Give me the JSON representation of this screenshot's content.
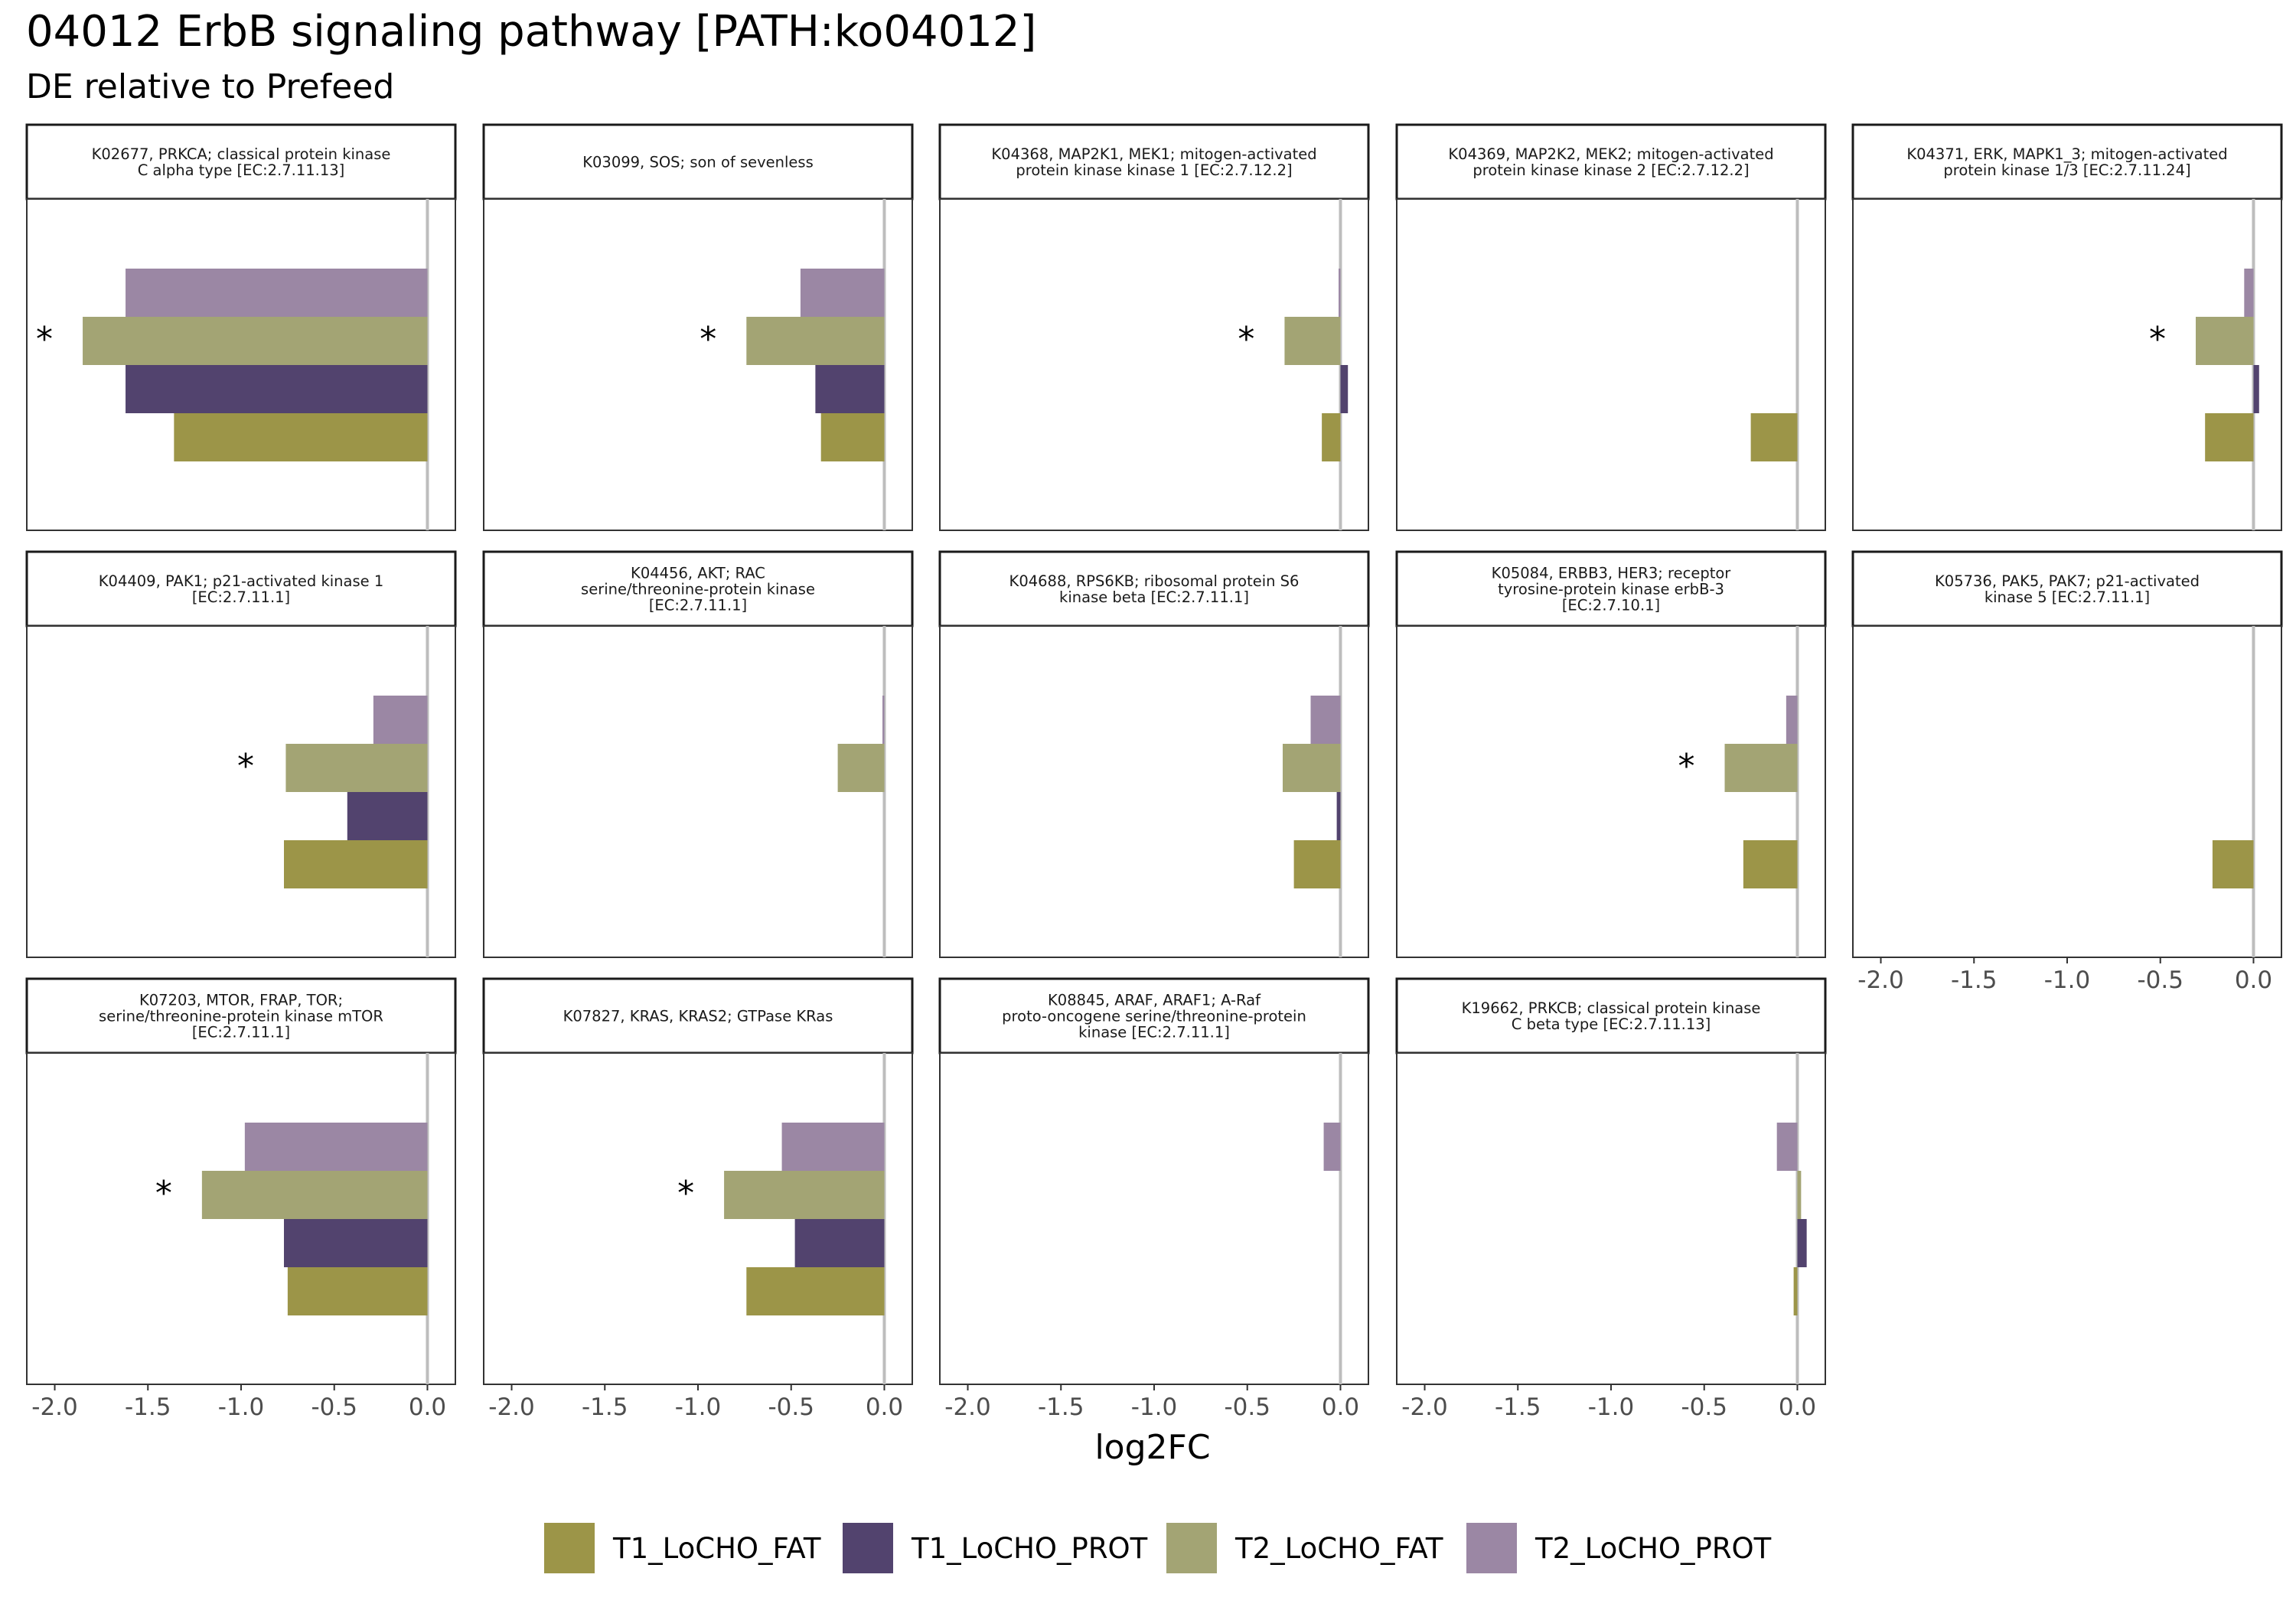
{
  "chart_data": {
    "type": "bar",
    "title": "04012 ErbB signaling pathway [PATH:ko04012]",
    "subtitle": "DE relative to Prefeed",
    "xlabel": "log2FC",
    "xlim": [
      -2.15,
      0.15
    ],
    "x_ticks": [
      "-2.0",
      "-1.5",
      "-1.0",
      "-0.5",
      "0.0"
    ],
    "x_tick_values": [
      -2.0,
      -1.5,
      -1.0,
      -0.5,
      0.0
    ],
    "grid": false,
    "orientation": "horizontal",
    "legend_position": "bottom",
    "significance_marker": "*",
    "series": [
      {
        "name": "T1_LoCHO_FAT",
        "color": "#9c9548"
      },
      {
        "name": "T1_LoCHO_PROT",
        "color": "#52436e"
      },
      {
        "name": "T2_LoCHO_FAT",
        "color": "#a3a474"
      },
      {
        "name": "T2_LoCHO_PROT",
        "color": "#9b87a4"
      }
    ],
    "panels": [
      {
        "label": [
          "K02677, PRKCA; classical protein kinase",
          "C alpha type [EC:2.7.11.13]"
        ],
        "values": {
          "T1_LoCHO_FAT": -1.36,
          "T1_LoCHO_PROT": -1.62,
          "T2_LoCHO_FAT": -1.85,
          "T2_LoCHO_PROT": -1.62
        },
        "significant": true
      },
      {
        "label": [
          "K03099, SOS; son of sevenless"
        ],
        "values": {
          "T1_LoCHO_FAT": -0.34,
          "T1_LoCHO_PROT": -0.37,
          "T2_LoCHO_FAT": -0.74,
          "T2_LoCHO_PROT": -0.45
        },
        "significant": true
      },
      {
        "label": [
          "K04368, MAP2K1, MEK1; mitogen-activated",
          "protein kinase kinase 1 [EC:2.7.12.2]"
        ],
        "values": {
          "T1_LoCHO_FAT": -0.1,
          "T1_LoCHO_PROT": 0.04,
          "T2_LoCHO_FAT": -0.3,
          "T2_LoCHO_PROT": -0.01
        },
        "significant": true
      },
      {
        "label": [
          "K04369, MAP2K2, MEK2; mitogen-activated",
          "protein kinase kinase 2 [EC:2.7.12.2]"
        ],
        "values": {
          "T1_LoCHO_FAT": -0.25,
          "T1_LoCHO_PROT": null,
          "T2_LoCHO_FAT": null,
          "T2_LoCHO_PROT": null
        },
        "significant": false
      },
      {
        "label": [
          "K04371, ERK, MAPK1_3; mitogen-activated",
          "protein kinase 1/3 [EC:2.7.11.24]"
        ],
        "values": {
          "T1_LoCHO_FAT": -0.26,
          "T1_LoCHO_PROT": 0.03,
          "T2_LoCHO_FAT": -0.31,
          "T2_LoCHO_PROT": -0.05
        },
        "significant": true
      },
      {
        "label": [
          "K04409, PAK1; p21-activated kinase 1",
          "[EC:2.7.11.1]"
        ],
        "values": {
          "T1_LoCHO_FAT": -0.77,
          "T1_LoCHO_PROT": -0.43,
          "T2_LoCHO_FAT": -0.76,
          "T2_LoCHO_PROT": -0.29
        },
        "significant": true
      },
      {
        "label": [
          "K04456, AKT; RAC",
          "serine/threonine-protein kinase",
          "[EC:2.7.11.1]"
        ],
        "values": {
          "T1_LoCHO_FAT": null,
          "T1_LoCHO_PROT": null,
          "T2_LoCHO_FAT": -0.25,
          "T2_LoCHO_PROT": -0.01
        },
        "significant": false
      },
      {
        "label": [
          "K04688, RPS6KB; ribosomal protein S6",
          "kinase beta [EC:2.7.11.1]"
        ],
        "values": {
          "T1_LoCHO_FAT": -0.25,
          "T1_LoCHO_PROT": -0.02,
          "T2_LoCHO_FAT": -0.31,
          "T2_LoCHO_PROT": -0.16
        },
        "significant": false
      },
      {
        "label": [
          "K05084, ERBB3, HER3; receptor",
          "tyrosine-protein kinase erbB-3",
          "[EC:2.7.10.1]"
        ],
        "values": {
          "T1_LoCHO_FAT": -0.29,
          "T1_LoCHO_PROT": null,
          "T2_LoCHO_FAT": -0.39,
          "T2_LoCHO_PROT": -0.06
        },
        "significant": true
      },
      {
        "label": [
          "K05736, PAK5, PAK7; p21-activated",
          "kinase 5 [EC:2.7.11.1]"
        ],
        "values": {
          "T1_LoCHO_FAT": -0.22,
          "T1_LoCHO_PROT": null,
          "T2_LoCHO_FAT": null,
          "T2_LoCHO_PROT": null
        },
        "significant": false
      },
      {
        "label": [
          "K07203, MTOR, FRAP, TOR;",
          "serine/threonine-protein kinase mTOR",
          "[EC:2.7.11.1]"
        ],
        "values": {
          "T1_LoCHO_FAT": -0.75,
          "T1_LoCHO_PROT": -0.77,
          "T2_LoCHO_FAT": -1.21,
          "T2_LoCHO_PROT": -0.98
        },
        "significant": true
      },
      {
        "label": [
          "K07827, KRAS, KRAS2; GTPase KRas"
        ],
        "values": {
          "T1_LoCHO_FAT": -0.74,
          "T1_LoCHO_PROT": -0.48,
          "T2_LoCHO_FAT": -0.86,
          "T2_LoCHO_PROT": -0.55
        },
        "significant": true
      },
      {
        "label": [
          "K08845, ARAF, ARAF1; A-Raf",
          "proto-oncogene serine/threonine-protein",
          "kinase [EC:2.7.11.1]"
        ],
        "values": {
          "T1_LoCHO_FAT": null,
          "T1_LoCHO_PROT": null,
          "T2_LoCHO_FAT": null,
          "T2_LoCHO_PROT": -0.09
        },
        "significant": false
      },
      {
        "label": [
          "K19662, PRKCB; classical protein kinase",
          "C beta type [EC:2.7.11.13]"
        ],
        "values": {
          "T1_LoCHO_FAT": -0.02,
          "T1_LoCHO_PROT": 0.05,
          "T2_LoCHO_FAT": 0.02,
          "T2_LoCHO_PROT": -0.11
        },
        "significant": false
      }
    ]
  }
}
